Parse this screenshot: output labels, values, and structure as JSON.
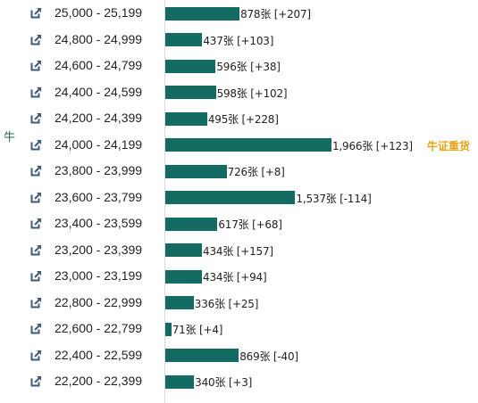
{
  "side_label": "牛",
  "colors": {
    "bar": "#136b61",
    "icon": "#3e5a78",
    "badge": "#e8a317",
    "side_label": "#1f6b5c"
  },
  "icon_name": "external-link-icon",
  "rows": [
    {
      "range": "25,000 - 25,199",
      "count": 878,
      "label": "878张 [+207]"
    },
    {
      "range": "24,800 - 24,999",
      "count": 437,
      "label": "437张 [+103]"
    },
    {
      "range": "24,600 - 24,799",
      "count": 596,
      "label": "596张 [+38]"
    },
    {
      "range": "24,400 - 24,599",
      "count": 598,
      "label": "598张 [+102]"
    },
    {
      "range": "24,200 - 24,399",
      "count": 495,
      "label": "495张 [+228]"
    },
    {
      "range": "24,000 - 24,199",
      "count": 1966,
      "label": "1,966张 [+123]",
      "badge": "牛证重货"
    },
    {
      "range": "23,800 - 23,999",
      "count": 726,
      "label": "726张 [+8]"
    },
    {
      "range": "23,600 - 23,799",
      "count": 1537,
      "label": "1,537张 [-114]"
    },
    {
      "range": "23,400 - 23,599",
      "count": 617,
      "label": "617张 [+68]"
    },
    {
      "range": "23,200 - 23,399",
      "count": 434,
      "label": "434张 [+157]"
    },
    {
      "range": "23,000 - 23,199",
      "count": 434,
      "label": "434张 [+94]"
    },
    {
      "range": "22,800 - 22,999",
      "count": 336,
      "label": "336张 [+25]"
    },
    {
      "range": "22,600 - 22,799",
      "count": 71,
      "label": "71张 [+4]"
    },
    {
      "range": "22,400 - 22,599",
      "count": 869,
      "label": "869张 [-40]"
    },
    {
      "range": "22,200 - 22,399",
      "count": 340,
      "label": "340张 [+3]"
    }
  ]
}
